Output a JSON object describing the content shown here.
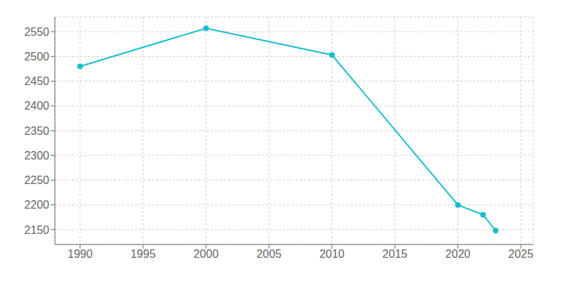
{
  "chart_data": {
    "type": "line",
    "x": [
      1990,
      2000,
      2010,
      2020,
      2022,
      2023
    ],
    "values": [
      2480,
      2557,
      2503,
      2200,
      2180,
      2148
    ],
    "color": "#17becf",
    "marker": "circle",
    "xlim": [
      1988,
      2026
    ],
    "xticks": [
      1990,
      1995,
      2000,
      2005,
      2010,
      2015,
      2020,
      2025
    ],
    "ylim": [
      2120,
      2580
    ],
    "yticks": [
      2150,
      2200,
      2250,
      2300,
      2350,
      2400,
      2450,
      2500,
      2550
    ],
    "grid": true
  }
}
